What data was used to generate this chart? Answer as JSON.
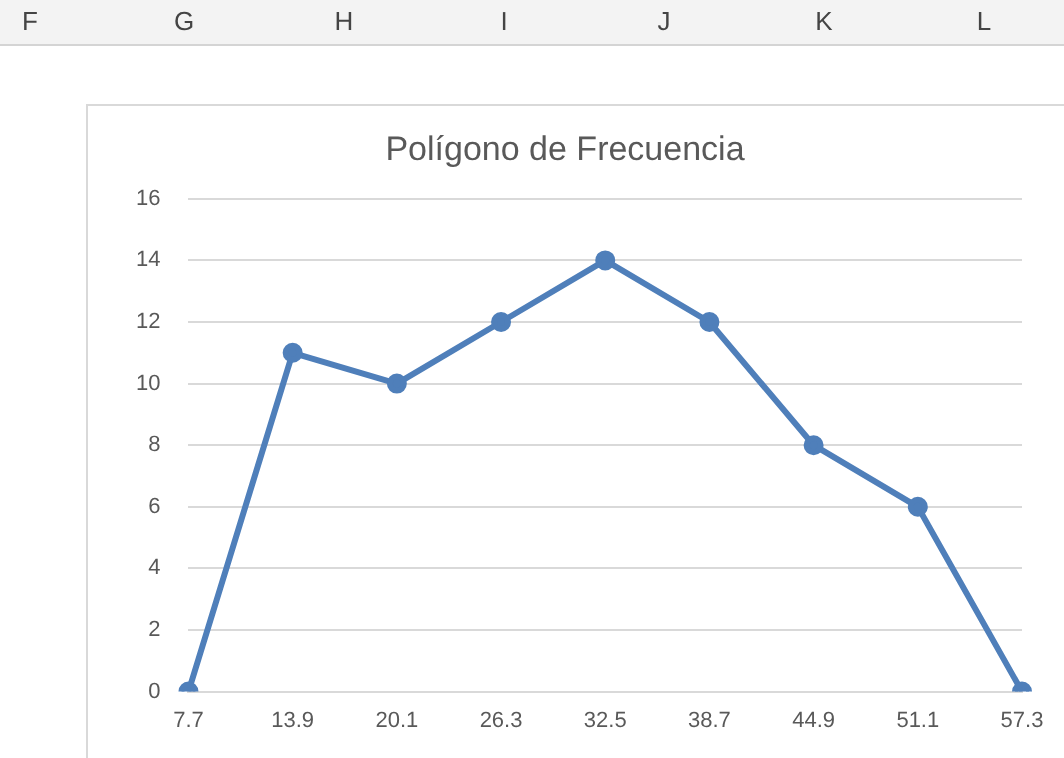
{
  "chart_data": {
    "type": "line",
    "title": "Polígono de Frecuencia",
    "categories": [
      "7.7",
      "13.9",
      "20.1",
      "26.3",
      "32.5",
      "38.7",
      "44.9",
      "51.1",
      "57.3"
    ],
    "series": [
      {
        "color": "#4f7fba",
        "values": [
          0,
          11,
          10,
          12,
          14,
          12,
          8,
          6,
          0
        ]
      }
    ],
    "ylim": [
      0,
      16
    ],
    "yticks": [
      0,
      2,
      4,
      6,
      8,
      10,
      12,
      14,
      16
    ],
    "grid": "y",
    "legend": false,
    "marker": "circle",
    "line_style": "solid",
    "annotations": [
      "F",
      "G",
      "H",
      "I",
      "J",
      "K",
      "L"
    ]
  }
}
